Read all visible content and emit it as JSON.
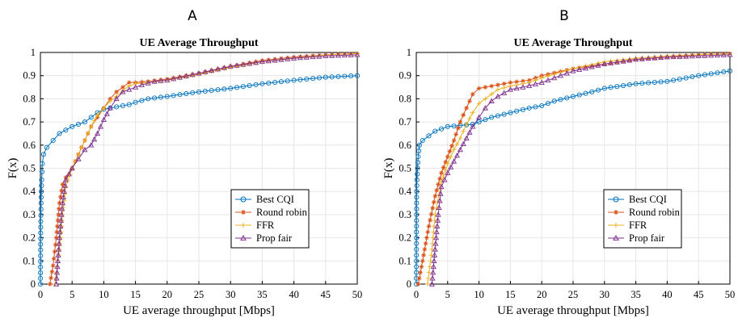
{
  "chart_data": [
    {
      "type": "line",
      "panel": "A",
      "title": "UE Average Throughput",
      "xlabel": "UE average throughput [Mbps]",
      "ylabel": "F(x)",
      "xlim": [
        0,
        50
      ],
      "ylim": [
        0,
        1
      ],
      "x_ticks": [
        "0",
        "5",
        "10",
        "15",
        "20",
        "25",
        "30",
        "35",
        "40",
        "45",
        "50"
      ],
      "y_ticks": [
        "0",
        "0.1",
        "0.2",
        "0.3",
        "0.4",
        "0.5",
        "0.6",
        "0.7",
        "0.8",
        "0.9",
        "1"
      ],
      "grid": true,
      "legend_position": "lower-right",
      "series": [
        {
          "name": "Best CQI",
          "color": "#0072BD",
          "marker": "circle",
          "points": [
            [
              0,
              0
            ],
            [
              0.05,
              0.27
            ],
            [
              0.1,
              0.35
            ],
            [
              0.2,
              0.45
            ],
            [
              0.3,
              0.52
            ],
            [
              0.5,
              0.56
            ],
            [
              1,
              0.59
            ],
            [
              2,
              0.62
            ],
            [
              3,
              0.65
            ],
            [
              5,
              0.68
            ],
            [
              7,
              0.7
            ],
            [
              8,
              0.72
            ],
            [
              9,
              0.74
            ],
            [
              10,
              0.755
            ],
            [
              12,
              0.765
            ],
            [
              14,
              0.775
            ],
            [
              15,
              0.785
            ],
            [
              17,
              0.8
            ],
            [
              20,
              0.81
            ],
            [
              25,
              0.83
            ],
            [
              30,
              0.845
            ],
            [
              35,
              0.865
            ],
            [
              40,
              0.88
            ],
            [
              45,
              0.893
            ],
            [
              50,
              0.9
            ]
          ]
        },
        {
          "name": "Round robin",
          "color": "#D95319",
          "marker": "asterisk",
          "points": [
            [
              1.5,
              0
            ],
            [
              2,
              0.08
            ],
            [
              2.5,
              0.2
            ],
            [
              3,
              0.35
            ],
            [
              3.5,
              0.43
            ],
            [
              4,
              0.46
            ],
            [
              5,
              0.5
            ],
            [
              6,
              0.56
            ],
            [
              7,
              0.62
            ],
            [
              8,
              0.68
            ],
            [
              9,
              0.72
            ],
            [
              10,
              0.76
            ],
            [
              11,
              0.8
            ],
            [
              12,
              0.83
            ],
            [
              13,
              0.85
            ],
            [
              14,
              0.87
            ],
            [
              15,
              0.87
            ],
            [
              17,
              0.875
            ],
            [
              20,
              0.885
            ],
            [
              25,
              0.91
            ],
            [
              30,
              0.94
            ],
            [
              35,
              0.965
            ],
            [
              40,
              0.98
            ],
            [
              45,
              0.99
            ],
            [
              50,
              0.995
            ]
          ]
        },
        {
          "name": "FFR",
          "color": "#EDB120",
          "marker": "plus",
          "points": [
            [
              2.3,
              0
            ],
            [
              3,
              0.15
            ],
            [
              3.5,
              0.3
            ],
            [
              4,
              0.42
            ],
            [
              5,
              0.5
            ],
            [
              6,
              0.56
            ],
            [
              7,
              0.62
            ],
            [
              8,
              0.68
            ],
            [
              9,
              0.73
            ],
            [
              10,
              0.76
            ],
            [
              11,
              0.79
            ],
            [
              12,
              0.81
            ],
            [
              13,
              0.835
            ],
            [
              14,
              0.855
            ],
            [
              15,
              0.865
            ],
            [
              17,
              0.87
            ],
            [
              20,
              0.88
            ],
            [
              25,
              0.905
            ],
            [
              30,
              0.935
            ],
            [
              35,
              0.96
            ],
            [
              40,
              0.975
            ],
            [
              45,
              0.99
            ],
            [
              50,
              0.995
            ]
          ]
        },
        {
          "name": "Prop fair",
          "color": "#7E2F8E",
          "marker": "triangle",
          "points": [
            [
              2.5,
              0
            ],
            [
              3,
              0.2
            ],
            [
              3.5,
              0.35
            ],
            [
              4,
              0.45
            ],
            [
              5,
              0.5
            ],
            [
              6,
              0.54
            ],
            [
              7,
              0.58
            ],
            [
              8,
              0.6
            ],
            [
              9,
              0.65
            ],
            [
              10,
              0.71
            ],
            [
              11,
              0.76
            ],
            [
              12,
              0.8
            ],
            [
              13,
              0.83
            ],
            [
              14,
              0.84
            ],
            [
              16,
              0.86
            ],
            [
              18,
              0.875
            ],
            [
              20,
              0.88
            ],
            [
              25,
              0.91
            ],
            [
              30,
              0.94
            ],
            [
              35,
              0.96
            ],
            [
              40,
              0.975
            ],
            [
              45,
              0.985
            ],
            [
              50,
              0.99
            ]
          ]
        }
      ]
    },
    {
      "type": "line",
      "panel": "B",
      "title": "UE Average Throughput",
      "xlabel": "UE average throughput [Mbps]",
      "ylabel": "F(x)",
      "xlim": [
        0,
        50
      ],
      "ylim": [
        0,
        1
      ],
      "x_ticks": [
        "0",
        "5",
        "10",
        "15",
        "20",
        "25",
        "30",
        "35",
        "40",
        "45",
        "50"
      ],
      "y_ticks": [
        "0",
        "0.1",
        "0.2",
        "0.3",
        "0.4",
        "0.5",
        "0.6",
        "0.7",
        "0.8",
        "0.9",
        "1"
      ],
      "grid": true,
      "legend_position": "lower-right",
      "series": [
        {
          "name": "Best CQI",
          "color": "#0072BD",
          "marker": "circle",
          "points": [
            [
              0,
              0
            ],
            [
              0.05,
              0.4
            ],
            [
              0.1,
              0.45
            ],
            [
              0.2,
              0.5
            ],
            [
              0.3,
              0.55
            ],
            [
              0.5,
              0.6
            ],
            [
              1,
              0.62
            ],
            [
              2,
              0.64
            ],
            [
              3,
              0.66
            ],
            [
              5,
              0.68
            ],
            [
              7,
              0.685
            ],
            [
              9,
              0.69
            ],
            [
              10,
              0.7
            ],
            [
              12,
              0.72
            ],
            [
              15,
              0.74
            ],
            [
              18,
              0.76
            ],
            [
              20,
              0.77
            ],
            [
              22,
              0.79
            ],
            [
              25,
              0.81
            ],
            [
              28,
              0.83
            ],
            [
              30,
              0.845
            ],
            [
              35,
              0.865
            ],
            [
              40,
              0.875
            ],
            [
              43,
              0.89
            ],
            [
              45,
              0.9
            ],
            [
              50,
              0.92
            ]
          ]
        },
        {
          "name": "Round robin",
          "color": "#D95319",
          "marker": "asterisk",
          "points": [
            [
              0.3,
              0
            ],
            [
              1,
              0.1
            ],
            [
              2,
              0.25
            ],
            [
              3,
              0.38
            ],
            [
              4,
              0.48
            ],
            [
              5,
              0.55
            ],
            [
              6,
              0.62
            ],
            [
              7,
              0.7
            ],
            [
              8,
              0.76
            ],
            [
              9,
              0.82
            ],
            [
              10,
              0.845
            ],
            [
              11,
              0.85
            ],
            [
              13,
              0.86
            ],
            [
              15,
              0.87
            ],
            [
              18,
              0.88
            ],
            [
              20,
              0.9
            ],
            [
              25,
              0.93
            ],
            [
              30,
              0.95
            ],
            [
              35,
              0.97
            ],
            [
              40,
              0.98
            ],
            [
              45,
              0.99
            ],
            [
              50,
              0.995
            ]
          ]
        },
        {
          "name": "FFR",
          "color": "#EDB120",
          "marker": "plus",
          "points": [
            [
              1.8,
              0
            ],
            [
              2.5,
              0.15
            ],
            [
              3,
              0.3
            ],
            [
              4,
              0.44
            ],
            [
              5,
              0.52
            ],
            [
              6,
              0.58
            ],
            [
              7,
              0.63
            ],
            [
              8,
              0.69
            ],
            [
              9,
              0.74
            ],
            [
              10,
              0.78
            ],
            [
              11,
              0.8
            ],
            [
              12,
              0.82
            ],
            [
              13,
              0.84
            ],
            [
              15,
              0.855
            ],
            [
              18,
              0.87
            ],
            [
              20,
              0.89
            ],
            [
              25,
              0.93
            ],
            [
              30,
              0.96
            ],
            [
              35,
              0.975
            ],
            [
              40,
              0.985
            ],
            [
              45,
              0.99
            ],
            [
              50,
              0.995
            ]
          ]
        },
        {
          "name": "Prop fair",
          "color": "#7E2F8E",
          "marker": "triangle",
          "points": [
            [
              2.5,
              0
            ],
            [
              3,
              0.15
            ],
            [
              3.5,
              0.3
            ],
            [
              4,
              0.42
            ],
            [
              5,
              0.48
            ],
            [
              6,
              0.53
            ],
            [
              7,
              0.58
            ],
            [
              8,
              0.63
            ],
            [
              9,
              0.68
            ],
            [
              10,
              0.72
            ],
            [
              11,
              0.76
            ],
            [
              12,
              0.79
            ],
            [
              13,
              0.81
            ],
            [
              15,
              0.84
            ],
            [
              17,
              0.85
            ],
            [
              20,
              0.87
            ],
            [
              25,
              0.92
            ],
            [
              30,
              0.95
            ],
            [
              35,
              0.97
            ],
            [
              40,
              0.98
            ],
            [
              45,
              0.985
            ],
            [
              50,
              0.99
            ]
          ]
        }
      ]
    }
  ]
}
